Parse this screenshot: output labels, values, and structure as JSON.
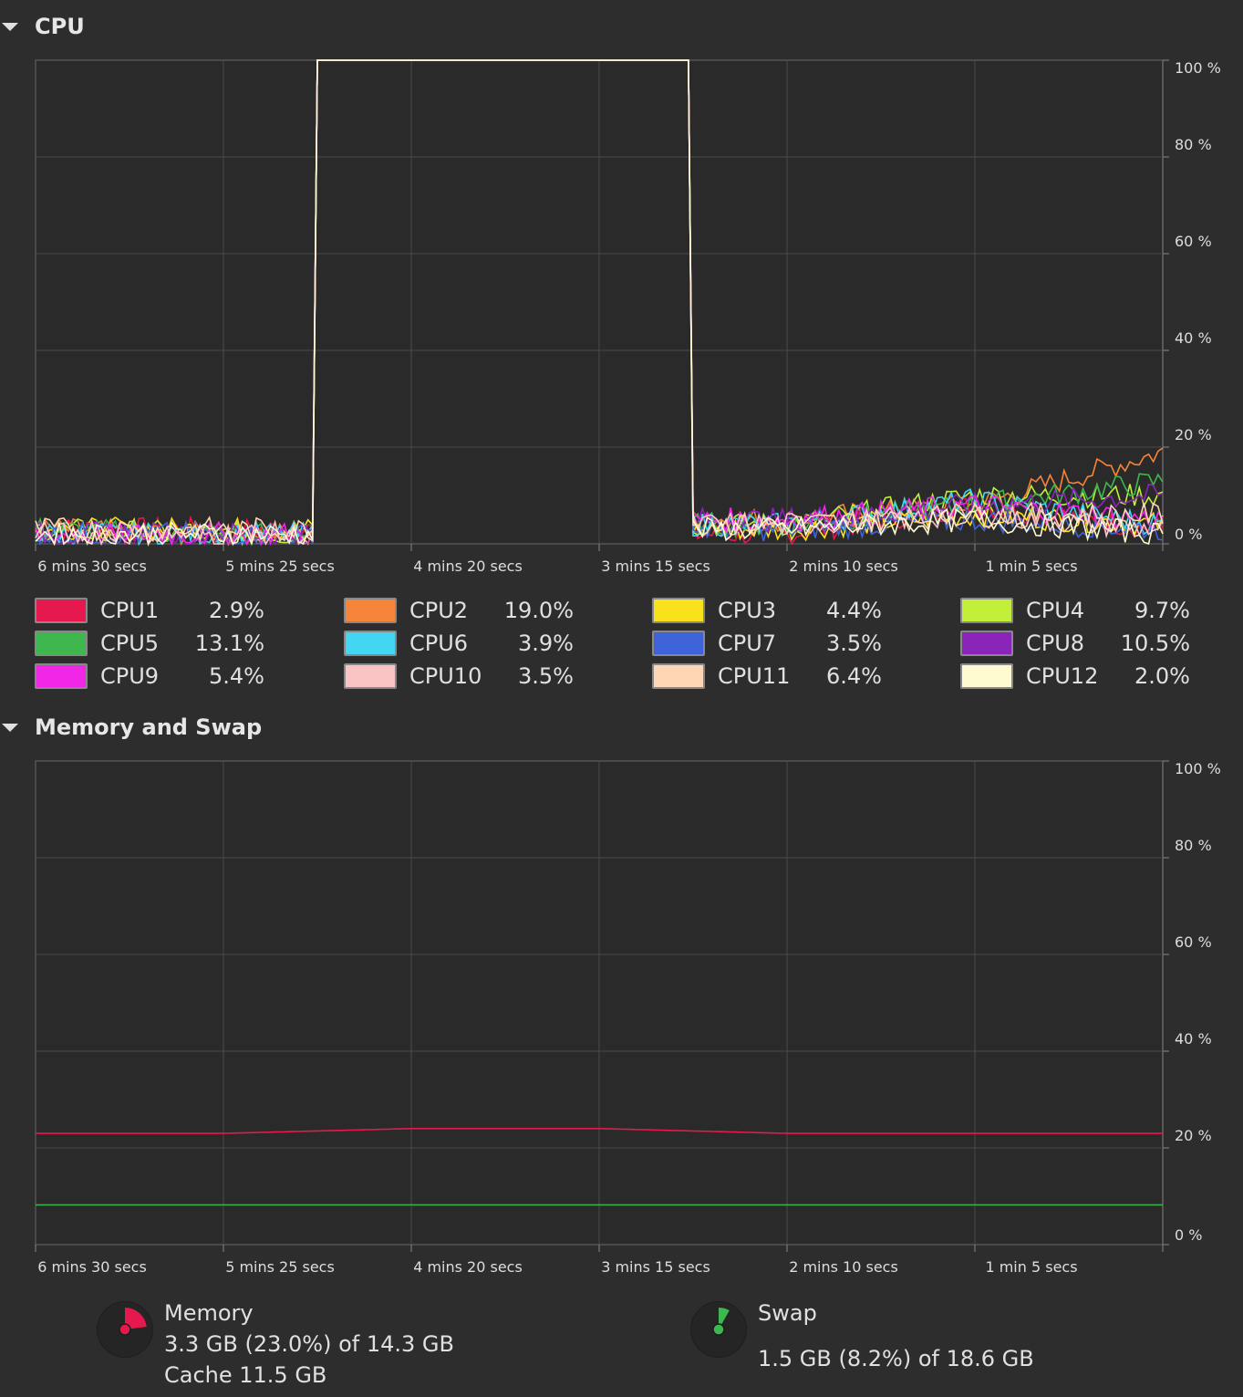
{
  "cpu_section": {
    "title": "CPU"
  },
  "memory_section": {
    "title": "Memory and Swap"
  },
  "y_ticks": [
    "100 %",
    "80 %",
    "60 %",
    "40 %",
    "20 %",
    "0 %"
  ],
  "x_ticks": [
    "6 mins 30 secs",
    "5 mins 25 secs",
    "4 mins 20 secs",
    "3 mins 15 secs",
    "2 mins 10 secs",
    "1 min 5 secs"
  ],
  "cpus": [
    {
      "label": "CPU1",
      "value": "2.9%",
      "color": "#e5194d"
    },
    {
      "label": "CPU2",
      "value": "19.0%",
      "color": "#f6843a"
    },
    {
      "label": "CPU3",
      "value": "4.4%",
      "color": "#f9e21b"
    },
    {
      "label": "CPU4",
      "value": "9.7%",
      "color": "#c1ef3a"
    },
    {
      "label": "CPU5",
      "value": "13.1%",
      "color": "#3db74e"
    },
    {
      "label": "CPU6",
      "value": "3.9%",
      "color": "#42d6f2"
    },
    {
      "label": "CPU7",
      "value": "3.5%",
      "color": "#3f63d9"
    },
    {
      "label": "CPU8",
      "value": "10.5%",
      "color": "#8b24b8"
    },
    {
      "label": "CPU9",
      "value": "5.4%",
      "color": "#f027e6"
    },
    {
      "label": "CPU10",
      "value": "3.5%",
      "color": "#fac4c4"
    },
    {
      "label": "CPU11",
      "value": "6.4%",
      "color": "#ffd5b4"
    },
    {
      "label": "CPU12",
      "value": "2.0%",
      "color": "#fffbd1"
    }
  ],
  "memory": {
    "title": "Memory",
    "usage": "3.3 GB (23.0%) of 14.3 GB",
    "cache": "Cache 11.5 GB",
    "color": "#e5194d",
    "percent": 23.0
  },
  "swap": {
    "title": "Swap",
    "usage": "1.5 GB (8.2%) of 18.6 GB",
    "color": "#3db74e",
    "percent": 8.2
  },
  "chart_data": [
    {
      "type": "line",
      "title": "CPU",
      "ylim": [
        0,
        100
      ],
      "x": [
        390,
        325,
        260,
        195,
        130,
        65,
        0
      ],
      "note_units": "seconds ago",
      "series": [
        {
          "name": "CPU1",
          "values": [
            3,
            3,
            100,
            100,
            2,
            8,
            3
          ]
        },
        {
          "name": "CPU2",
          "values": [
            3,
            2,
            100,
            100,
            5,
            8,
            19
          ]
        },
        {
          "name": "CPU3",
          "values": [
            3,
            3,
            100,
            100,
            3,
            6,
            4
          ]
        },
        {
          "name": "CPU4",
          "values": [
            3,
            2,
            100,
            100,
            4,
            10,
            10
          ]
        },
        {
          "name": "CPU5",
          "values": [
            3,
            2,
            100,
            100,
            4,
            8,
            13
          ]
        },
        {
          "name": "CPU6",
          "values": [
            2,
            2,
            100,
            100,
            4,
            9,
            4
          ]
        },
        {
          "name": "CPU7",
          "values": [
            2,
            2,
            100,
            100,
            3,
            5,
            3
          ]
        },
        {
          "name": "CPU8",
          "values": [
            2,
            2,
            100,
            100,
            5,
            8,
            10
          ]
        },
        {
          "name": "CPU9",
          "values": [
            2,
            2,
            100,
            100,
            5,
            8,
            5
          ]
        },
        {
          "name": "CPU10",
          "values": [
            2,
            2,
            100,
            100,
            4,
            6,
            3
          ]
        },
        {
          "name": "CPU11",
          "values": [
            3,
            3,
            100,
            100,
            4,
            6,
            6
          ]
        },
        {
          "name": "CPU12",
          "values": [
            2,
            2,
            100,
            100,
            3,
            5,
            2
          ]
        }
      ]
    },
    {
      "type": "line",
      "title": "Memory and Swap",
      "ylim": [
        0,
        100
      ],
      "x": [
        390,
        325,
        260,
        195,
        130,
        65,
        0
      ],
      "series": [
        {
          "name": "Memory",
          "values": [
            23,
            23,
            24,
            24,
            23,
            23,
            23
          ]
        },
        {
          "name": "Swap",
          "values": [
            8.2,
            8.2,
            8.2,
            8.2,
            8.2,
            8.2,
            8.2
          ]
        }
      ]
    }
  ]
}
